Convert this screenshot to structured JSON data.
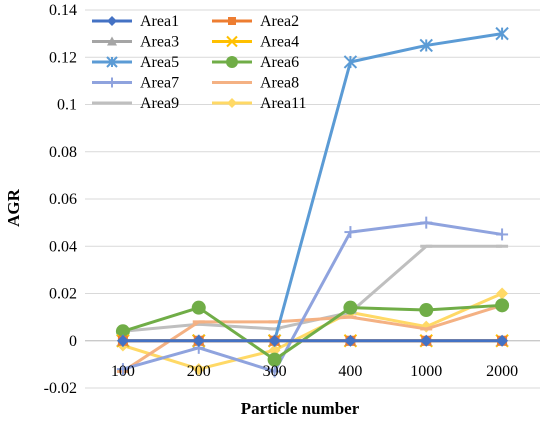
{
  "chart_data": {
    "type": "line",
    "xlabel": "Particle number",
    "ylabel": "AGR",
    "categories": [
      "100",
      "200",
      "300",
      "400",
      "1000",
      "2000"
    ],
    "ylim": [
      -0.02,
      0.14
    ],
    "yticks": [
      "-0.02",
      "0",
      "0.02",
      "0.04",
      "0.06",
      "0.08",
      "0.1",
      "0.12",
      "0.14"
    ],
    "grid": "horizontal",
    "legend_position": "top-left",
    "series": [
      {
        "name": "Area1",
        "color": "#4472C4",
        "marker": "diamond",
        "values": [
          0,
          0,
          0,
          0,
          0,
          0
        ]
      },
      {
        "name": "Area2",
        "color": "#ED7D31",
        "marker": "square",
        "values": [
          0,
          0,
          0,
          0,
          0,
          0
        ]
      },
      {
        "name": "Area3",
        "color": "#A5A5A5",
        "marker": "triangle",
        "values": [
          0,
          0,
          0,
          0,
          0,
          0
        ]
      },
      {
        "name": "Area4",
        "color": "#FFC000",
        "marker": "x",
        "values": [
          0,
          0,
          0,
          0,
          0,
          0
        ]
      },
      {
        "name": "Area5",
        "color": "#5B9BD5",
        "marker": "star",
        "values": [
          0,
          0,
          0,
          0.118,
          0.125,
          0.13
        ]
      },
      {
        "name": "Area6",
        "color": "#70AD47",
        "marker": "circle",
        "values": [
          0.004,
          0.014,
          -0.008,
          0.014,
          0.013,
          0.015
        ]
      },
      {
        "name": "Area7",
        "color": "#8FA3DE",
        "marker": "plus",
        "values": [
          -0.012,
          -0.003,
          -0.013,
          0.046,
          0.05,
          0.045
        ]
      },
      {
        "name": "Area8",
        "color": "#F4B183",
        "marker": "dash",
        "values": [
          -0.013,
          0.008,
          0.008,
          0.01,
          0.005,
          0.015
        ]
      },
      {
        "name": "Area9",
        "color": "#BFBFBF",
        "marker": "dash",
        "values": [
          0.004,
          0.007,
          0.005,
          0.012,
          0.04,
          0.04
        ]
      },
      {
        "name": "Area11",
        "color": "#FFD966",
        "marker": "diamond",
        "values": [
          -0.002,
          -0.012,
          -0.004,
          0.012,
          0.006,
          0.02
        ]
      }
    ]
  }
}
